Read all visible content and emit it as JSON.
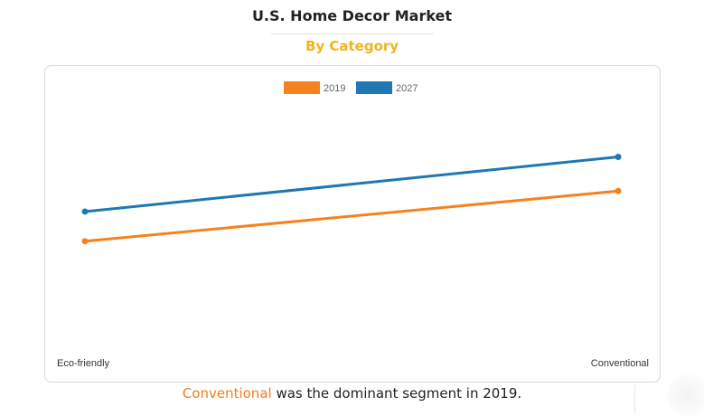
{
  "page": {
    "title": "U.S. Home Decor Market",
    "subtitle": "By Category",
    "caption_highlight": "Conventional",
    "caption_rest": " was the dominant segment in 2019."
  },
  "chart_data": {
    "type": "line",
    "categories": [
      "Eco-friendly",
      "Conventional"
    ],
    "series": [
      {
        "name": "2019",
        "color": "#f5821f",
        "values": [
          0.39,
          0.61
        ]
      },
      {
        "name": "2027",
        "color": "#1f77b4",
        "values": [
          0.52,
          0.76
        ]
      }
    ],
    "legend_position": "top-center",
    "ylim": [
      0,
      1
    ],
    "grid": false
  }
}
